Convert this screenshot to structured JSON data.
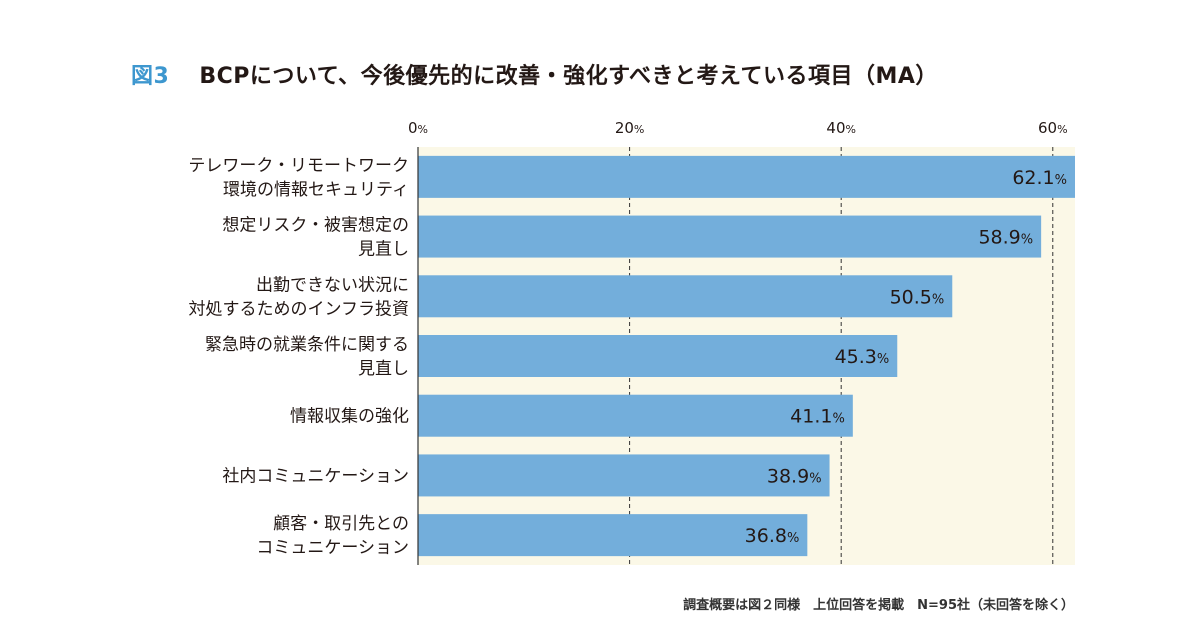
{
  "figure": {
    "label": "図3",
    "title": "BCPについて、今後優先的に改善・強化すべきと考えている項目（MA）",
    "footnote": "調査概要は図２同様　上位回答を掲載　N=95社（未回答を除く）"
  },
  "colors": {
    "bar": "#73aedb",
    "plot_bg": "#fbf8e7",
    "grid": "#333333",
    "accent": "#3d97cf",
    "text": "#231815"
  },
  "chart_data": {
    "type": "bar",
    "orientation": "horizontal",
    "categories": [
      [
        "テレワーク・リモートワーク",
        "環境の情報セキュリティ"
      ],
      [
        "想定リスク・被害想定の",
        "見直し"
      ],
      [
        "出勤できない状況に",
        "対処するためのインフラ投資"
      ],
      [
        "緊急時の就業条件に関する",
        "見直し"
      ],
      [
        "情報収集の強化"
      ],
      [
        "社内コミュニケーション"
      ],
      [
        "顧客・取引先との",
        "コミュニケーション"
      ]
    ],
    "values": [
      62.1,
      58.9,
      50.5,
      45.3,
      41.1,
      38.9,
      36.8
    ],
    "value_labels": [
      "62.1",
      "58.9",
      "50.5",
      "45.3",
      "41.1",
      "38.9",
      "36.8"
    ],
    "value_unit": "%",
    "xlim": [
      0,
      62.1
    ],
    "x_ticks": [
      0,
      20,
      40,
      60
    ],
    "x_tick_labels": [
      "0",
      "20",
      "40",
      "60"
    ],
    "x_tick_unit": "%",
    "axis_position": "top",
    "grid": true,
    "grid_style": "dashed"
  }
}
